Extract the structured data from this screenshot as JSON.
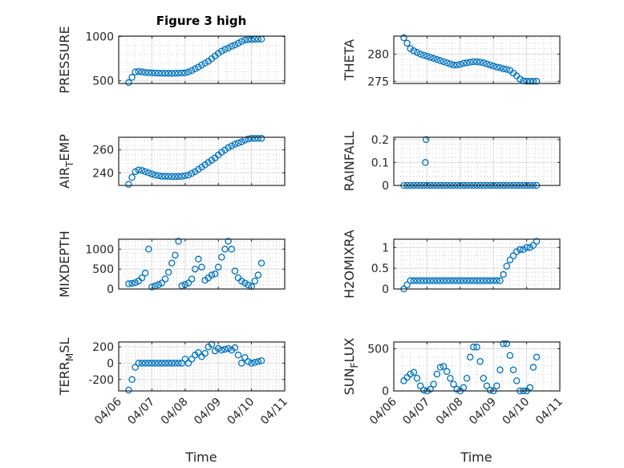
{
  "chart_data": {
    "type": "scatter",
    "title": "Figure 3 high",
    "xlabel": "Time",
    "x_tick_labels": [
      "04/06",
      "04/07",
      "04/08",
      "04/09",
      "04/10",
      "04/11"
    ],
    "x_units": "days since 04/06 00:00",
    "xlim": [
      0,
      5
    ],
    "grid": true,
    "minor_grid": true,
    "marker": "open-circle",
    "color": "#0072BD",
    "t": [
      0.3,
      0.4,
      0.5,
      0.6,
      0.7,
      0.8,
      0.9,
      1.0,
      1.1,
      1.2,
      1.3,
      1.4,
      1.5,
      1.6,
      1.7,
      1.8,
      1.9,
      2.0,
      2.1,
      2.2,
      2.3,
      2.4,
      2.5,
      2.6,
      2.7,
      2.8,
      2.9,
      3.0,
      3.1,
      3.2,
      3.3,
      3.4,
      3.5,
      3.6,
      3.7,
      3.8,
      3.9,
      4.0,
      4.1,
      4.2,
      4.3
    ],
    "panels": [
      {
        "ylabel": "PRESSURE",
        "ylim": [
          470,
          1005
        ],
        "yticks": [
          500,
          1000
        ],
        "ytick_labels": [
          "500",
          "1000"
        ],
        "show_title": true,
        "values": [
          480,
          540,
          600,
          605,
          600,
          595,
          592,
          590,
          588,
          587,
          586,
          586,
          585,
          585,
          586,
          587,
          588,
          590,
          600,
          615,
          635,
          655,
          680,
          700,
          720,
          750,
          780,
          810,
          835,
          855,
          870,
          890,
          905,
          925,
          945,
          960,
          965,
          968,
          970,
          970,
          972
        ]
      },
      {
        "ylabel": "THETA",
        "ylim": [
          274.6,
          283.3
        ],
        "yticks": [
          275,
          280
        ],
        "ytick_labels": [
          "275",
          "280"
        ],
        "values": [
          283,
          282,
          281,
          280.6,
          280.3,
          280,
          279.8,
          279.6,
          279.4,
          279.2,
          279,
          278.8,
          278.6,
          278.4,
          278.2,
          278,
          278,
          278.1,
          278.3,
          278.4,
          278.5,
          278.6,
          278.6,
          278.5,
          278.4,
          278.2,
          278,
          277.8,
          277.6,
          277.5,
          277.3,
          277.2,
          277,
          276.5,
          276,
          275.4,
          275.1,
          275,
          275,
          275,
          275
        ]
      },
      {
        "ylabel": "AIR_TEMP",
        "ylim": [
          229,
          271
        ],
        "yticks": [
          240,
          260
        ],
        "ytick_labels": [
          "240",
          "260"
        ],
        "values": [
          230,
          236,
          241,
          242.5,
          242,
          241,
          240,
          239,
          238,
          237.5,
          237,
          237,
          236.8,
          236.7,
          236.7,
          236.8,
          237,
          237.5,
          238,
          239.5,
          241,
          243,
          245,
          247,
          249,
          251,
          253,
          255.5,
          258,
          260,
          262,
          263.5,
          265,
          266,
          267,
          268.5,
          269.5,
          270,
          270,
          270,
          270
        ]
      },
      {
        "ylabel": "RAINFALL",
        "ylim": [
          0,
          0.21
        ],
        "yticks": [
          0,
          0.1,
          0.2
        ],
        "ytick_labels": [
          "0",
          "0.1",
          "0.2"
        ],
        "values": [
          0,
          0,
          0,
          0,
          0,
          0,
          0,
          0,
          0,
          0,
          0,
          0,
          0,
          0,
          0,
          0,
          0,
          0,
          0,
          0,
          0,
          0,
          0,
          0,
          0,
          0,
          0,
          0,
          0,
          0,
          0,
          0,
          0,
          0,
          0,
          0,
          0,
          0,
          0,
          0,
          0
        ],
        "extra_points": [
          [
            0.95,
            0.1
          ],
          [
            0.97,
            0.2
          ]
        ]
      },
      {
        "ylabel": "MIXDEPTH",
        "ylim": [
          0,
          1250
        ],
        "yticks": [
          0,
          500,
          1000
        ],
        "ytick_labels": [
          "0",
          "500",
          "1000"
        ],
        "values": [
          130,
          140,
          160,
          200,
          280,
          400,
          1000,
          50,
          80,
          110,
          150,
          250,
          420,
          650,
          850,
          1200,
          80,
          110,
          150,
          250,
          500,
          750,
          550,
          220,
          280,
          350,
          380,
          550,
          800,
          1000,
          1200,
          1000,
          450,
          280,
          200,
          150,
          100,
          60,
          200,
          350,
          650
        ]
      },
      {
        "ylabel": "H2OMIXRA",
        "ylim": [
          0,
          1.2
        ],
        "yticks": [
          0,
          0.5,
          1
        ],
        "ytick_labels": [
          "0",
          "0.5",
          "1"
        ],
        "values": [
          0,
          0.1,
          0.2,
          0.2,
          0.2,
          0.2,
          0.2,
          0.2,
          0.2,
          0.2,
          0.2,
          0.2,
          0.2,
          0.2,
          0.2,
          0.2,
          0.2,
          0.2,
          0.2,
          0.2,
          0.2,
          0.2,
          0.2,
          0.2,
          0.2,
          0.2,
          0.2,
          0.2,
          0.2,
          0.2,
          0.35,
          0.55,
          0.7,
          0.8,
          0.9,
          0.95,
          0.95,
          1.0,
          1.0,
          1.05,
          1.15
        ]
      },
      {
        "ylabel": "TERR_MSL",
        "ylim": [
          -340,
          260
        ],
        "yticks": [
          -200,
          0,
          200
        ],
        "ytick_labels": [
          "-200",
          "0",
          "200"
        ],
        "show_xticks": true,
        "values": [
          -330,
          -200,
          -50,
          0,
          0,
          0,
          0,
          0,
          0,
          0,
          0,
          0,
          0,
          0,
          0,
          0,
          0,
          50,
          0,
          50,
          100,
          130,
          80,
          120,
          200,
          230,
          150,
          180,
          160,
          170,
          180,
          160,
          190,
          100,
          0,
          70,
          20,
          0,
          10,
          20,
          30
        ]
      },
      {
        "ylabel": "SUN_FLUX",
        "ylim": [
          0,
          580
        ],
        "yticks": [
          0,
          500
        ],
        "ytick_labels": [
          "0",
          "500"
        ],
        "show_xticks": true,
        "values": [
          120,
          160,
          200,
          220,
          150,
          60,
          10,
          0,
          20,
          80,
          200,
          280,
          290,
          230,
          150,
          80,
          20,
          0,
          40,
          150,
          400,
          520,
          520,
          350,
          150,
          60,
          10,
          0,
          60,
          250,
          560,
          560,
          420,
          250,
          120,
          0,
          0,
          0,
          40,
          280,
          400
        ]
      }
    ]
  }
}
